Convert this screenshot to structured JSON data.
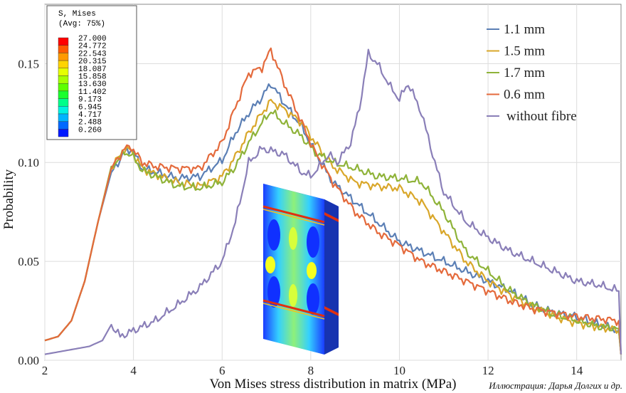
{
  "chart_data": {
    "type": "line",
    "xlabel": "Von Mises stress distribution in matrix (MPa)",
    "ylabel": "Probability",
    "xlim": [
      2,
      15
    ],
    "ylim": [
      0,
      0.18
    ],
    "x_ticks": [
      "2",
      "4",
      "6",
      "8",
      "10",
      "12",
      "14"
    ],
    "y_ticks": [
      "0.00",
      "0.05",
      "0.10",
      "0.15"
    ],
    "grid": true,
    "legend_position": "top-right",
    "series": [
      {
        "name": "1.1 mm",
        "color": "#5b7fb5",
        "x": [
          2,
          2.3,
          2.6,
          2.9,
          3.2,
          3.5,
          3.8,
          3.95,
          4.2,
          4.5,
          5,
          5.5,
          6,
          6.3,
          6.6,
          6.9,
          7.1,
          7.4,
          7.8,
          8.1,
          8.5,
          9,
          9.5,
          10,
          10.5,
          11,
          11.5,
          12,
          12.5,
          13,
          13.5,
          14,
          14.5,
          14.95,
          15
        ],
        "y": [
          0.01,
          0.012,
          0.02,
          0.04,
          0.07,
          0.095,
          0.105,
          0.107,
          0.097,
          0.095,
          0.092,
          0.093,
          0.101,
          0.115,
          0.125,
          0.133,
          0.14,
          0.13,
          0.118,
          0.105,
          0.09,
          0.08,
          0.07,
          0.06,
          0.055,
          0.05,
          0.045,
          0.04,
          0.035,
          0.028,
          0.024,
          0.022,
          0.018,
          0.015,
          0.003
        ]
      },
      {
        "name": "1.5 mm",
        "color": "#d9a72a",
        "x": [
          2,
          2.3,
          2.6,
          2.9,
          3.2,
          3.5,
          3.8,
          3.95,
          4.2,
          4.5,
          5,
          5.5,
          6,
          6.3,
          6.6,
          6.9,
          7.1,
          7.4,
          7.8,
          8.1,
          8.5,
          9,
          9.5,
          10,
          10.5,
          11,
          11.5,
          12,
          12.5,
          13,
          13.5,
          14,
          14.5,
          14.95,
          15
        ],
        "y": [
          0.01,
          0.012,
          0.02,
          0.04,
          0.07,
          0.097,
          0.107,
          0.106,
          0.097,
          0.094,
          0.09,
          0.088,
          0.093,
          0.103,
          0.115,
          0.125,
          0.131,
          0.127,
          0.12,
          0.11,
          0.098,
          0.09,
          0.088,
          0.087,
          0.08,
          0.065,
          0.05,
          0.04,
          0.033,
          0.027,
          0.022,
          0.019,
          0.017,
          0.015,
          0.003
        ]
      },
      {
        "name": "1.7 mm",
        "color": "#8fb339",
        "x": [
          2,
          2.3,
          2.6,
          2.9,
          3.2,
          3.5,
          3.8,
          3.95,
          4.2,
          4.5,
          5,
          5.5,
          6,
          6.3,
          6.6,
          6.9,
          7.1,
          7.4,
          7.8,
          8.1,
          8.5,
          9,
          9.5,
          10,
          10.5,
          11,
          11.5,
          12,
          12.5,
          13,
          13.5,
          14,
          14.5,
          14.95,
          15
        ],
        "y": [
          0.01,
          0.012,
          0.02,
          0.04,
          0.07,
          0.098,
          0.105,
          0.104,
          0.096,
          0.093,
          0.088,
          0.087,
          0.09,
          0.098,
          0.11,
          0.12,
          0.126,
          0.12,
          0.113,
          0.105,
          0.1,
          0.097,
          0.093,
          0.092,
          0.09,
          0.075,
          0.055,
          0.045,
          0.035,
          0.028,
          0.023,
          0.02,
          0.017,
          0.016,
          0.003
        ]
      },
      {
        "name": "0.6 mm",
        "color": "#e46a3c",
        "x": [
          2,
          2.3,
          2.6,
          2.9,
          3.2,
          3.5,
          3.8,
          3.95,
          4.2,
          4.5,
          5,
          5.5,
          6,
          6.3,
          6.6,
          6.9,
          7.1,
          7.4,
          7.8,
          8.1,
          8.5,
          9,
          9.5,
          10,
          10.5,
          11,
          11.5,
          12,
          12.5,
          13,
          13.5,
          14,
          14.5,
          14.95,
          15
        ],
        "y": [
          0.01,
          0.012,
          0.02,
          0.04,
          0.07,
          0.097,
          0.107,
          0.108,
          0.1,
          0.098,
          0.097,
          0.097,
          0.11,
          0.128,
          0.145,
          0.148,
          0.157,
          0.14,
          0.12,
          0.105,
          0.09,
          0.075,
          0.065,
          0.058,
          0.05,
          0.045,
          0.04,
          0.035,
          0.03,
          0.026,
          0.024,
          0.022,
          0.021,
          0.02,
          0.003
        ]
      },
      {
        "name": "without fibre",
        "color": "#8a7fb8",
        "x": [
          2,
          2.5,
          3,
          3.3,
          3.5,
          3.7,
          4,
          4.5,
          5,
          5.5,
          6,
          6.3,
          6.6,
          6.9,
          7.1,
          7.4,
          7.8,
          8,
          8.2,
          8.4,
          8.6,
          8.9,
          9.1,
          9.3,
          9.5,
          9.8,
          10,
          10.2,
          10.5,
          10.8,
          11,
          11.5,
          12,
          12.5,
          13,
          13.5,
          14,
          14.5,
          14.95,
          15
        ],
        "y": [
          0.003,
          0.005,
          0.007,
          0.01,
          0.018,
          0.012,
          0.015,
          0.02,
          0.028,
          0.037,
          0.05,
          0.07,
          0.1,
          0.107,
          0.106,
          0.104,
          0.095,
          0.093,
          0.098,
          0.104,
          0.1,
          0.11,
          0.128,
          0.155,
          0.15,
          0.138,
          0.132,
          0.14,
          0.125,
          0.1,
          0.085,
          0.07,
          0.062,
          0.055,
          0.05,
          0.045,
          0.04,
          0.038,
          0.035,
          0.003
        ]
      }
    ]
  },
  "colorbar": {
    "title_line1": "S, Mises",
    "title_line2": "(Avg: 75%)",
    "labels": [
      "27.000",
      "24.772",
      "22.543",
      "20.315",
      "18.087",
      "15.858",
      "13.630",
      "11.402",
      "9.173",
      "6.945",
      "4.717",
      "2.488",
      "0.260"
    ],
    "colors": [
      "#ff0000",
      "#ff5a00",
      "#ff9a00",
      "#ffd400",
      "#e6ff00",
      "#a6ff00",
      "#5dff00",
      "#1aff2e",
      "#00ff8a",
      "#00f2e0",
      "#00b4ff",
      "#0068ff",
      "#0018ff"
    ]
  },
  "credit": "Иллюстрация: Дарья Долгих и др."
}
